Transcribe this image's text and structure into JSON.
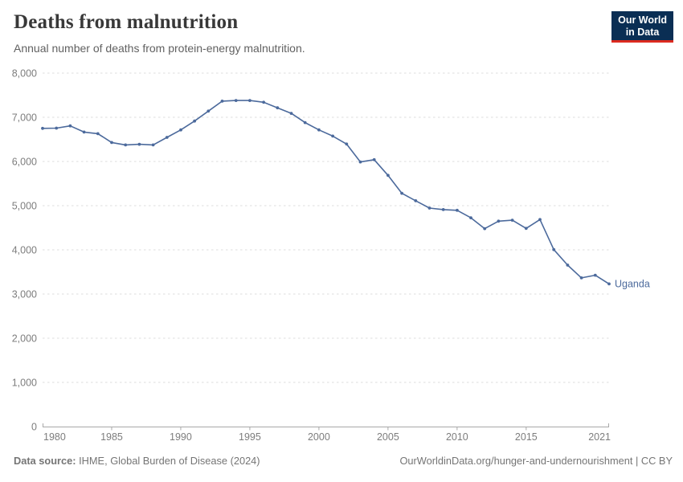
{
  "header": {
    "title": "Deaths from malnutrition",
    "subtitle": "Annual number of deaths from protein-energy malnutrition."
  },
  "logo": {
    "line1": "Our World",
    "line2": "in Data",
    "bg_color": "#0A2E54",
    "accent_color": "#DC2A1F"
  },
  "chart_data": {
    "type": "line",
    "title": "Deaths from malnutrition",
    "xlabel": "",
    "ylabel": "",
    "xlim": [
      1980,
      2021
    ],
    "ylim": [
      0,
      8000
    ],
    "grid": "horizontal-dashed",
    "legend_position": "end-of-line-label",
    "x_ticks": [
      {
        "value": 1980,
        "label": "1980"
      },
      {
        "value": 1985,
        "label": "1985"
      },
      {
        "value": 1990,
        "label": "1990"
      },
      {
        "value": 1995,
        "label": "1995"
      },
      {
        "value": 2000,
        "label": "2000"
      },
      {
        "value": 2005,
        "label": "2005"
      },
      {
        "value": 2010,
        "label": "2010"
      },
      {
        "value": 2015,
        "label": "2015"
      },
      {
        "value": 2021,
        "label": "2021"
      }
    ],
    "y_ticks": [
      {
        "value": 0,
        "label": "0"
      },
      {
        "value": 1000,
        "label": "1,000"
      },
      {
        "value": 2000,
        "label": "2,000"
      },
      {
        "value": 3000,
        "label": "3,000"
      },
      {
        "value": 4000,
        "label": "4,000"
      },
      {
        "value": 5000,
        "label": "5,000"
      },
      {
        "value": 6000,
        "label": "6,000"
      },
      {
        "value": 7000,
        "label": "7,000"
      },
      {
        "value": 8000,
        "label": "8,000"
      }
    ],
    "series": [
      {
        "name": "Uganda",
        "color": "#4C6A9C",
        "x": [
          1980,
          1981,
          1982,
          1983,
          1984,
          1985,
          1986,
          1987,
          1988,
          1989,
          1990,
          1991,
          1992,
          1993,
          1994,
          1995,
          1996,
          1997,
          1998,
          1999,
          2000,
          2001,
          2002,
          2003,
          2004,
          2005,
          2006,
          2007,
          2008,
          2009,
          2010,
          2011,
          2012,
          2013,
          2014,
          2015,
          2016,
          2017,
          2018,
          2019,
          2020,
          2021
        ],
        "values": [
          6750,
          6755,
          6805,
          6665,
          6630,
          6430,
          6375,
          6390,
          6375,
          6545,
          6715,
          6915,
          7140,
          7365,
          7380,
          7380,
          7340,
          7215,
          7090,
          6880,
          6715,
          6575,
          6395,
          5990,
          6040,
          5685,
          5280,
          5110,
          4945,
          4910,
          4895,
          4725,
          4480,
          4650,
          4670,
          4485,
          4685,
          4005,
          3655,
          3365,
          3425,
          3230
        ]
      }
    ]
  },
  "footer": {
    "source_label": "Data source:",
    "source_text": " IHME, Global Burden of Disease (2024)",
    "credit": "OurWorldinData.org/hunger-and-undernourishment | CC BY"
  }
}
